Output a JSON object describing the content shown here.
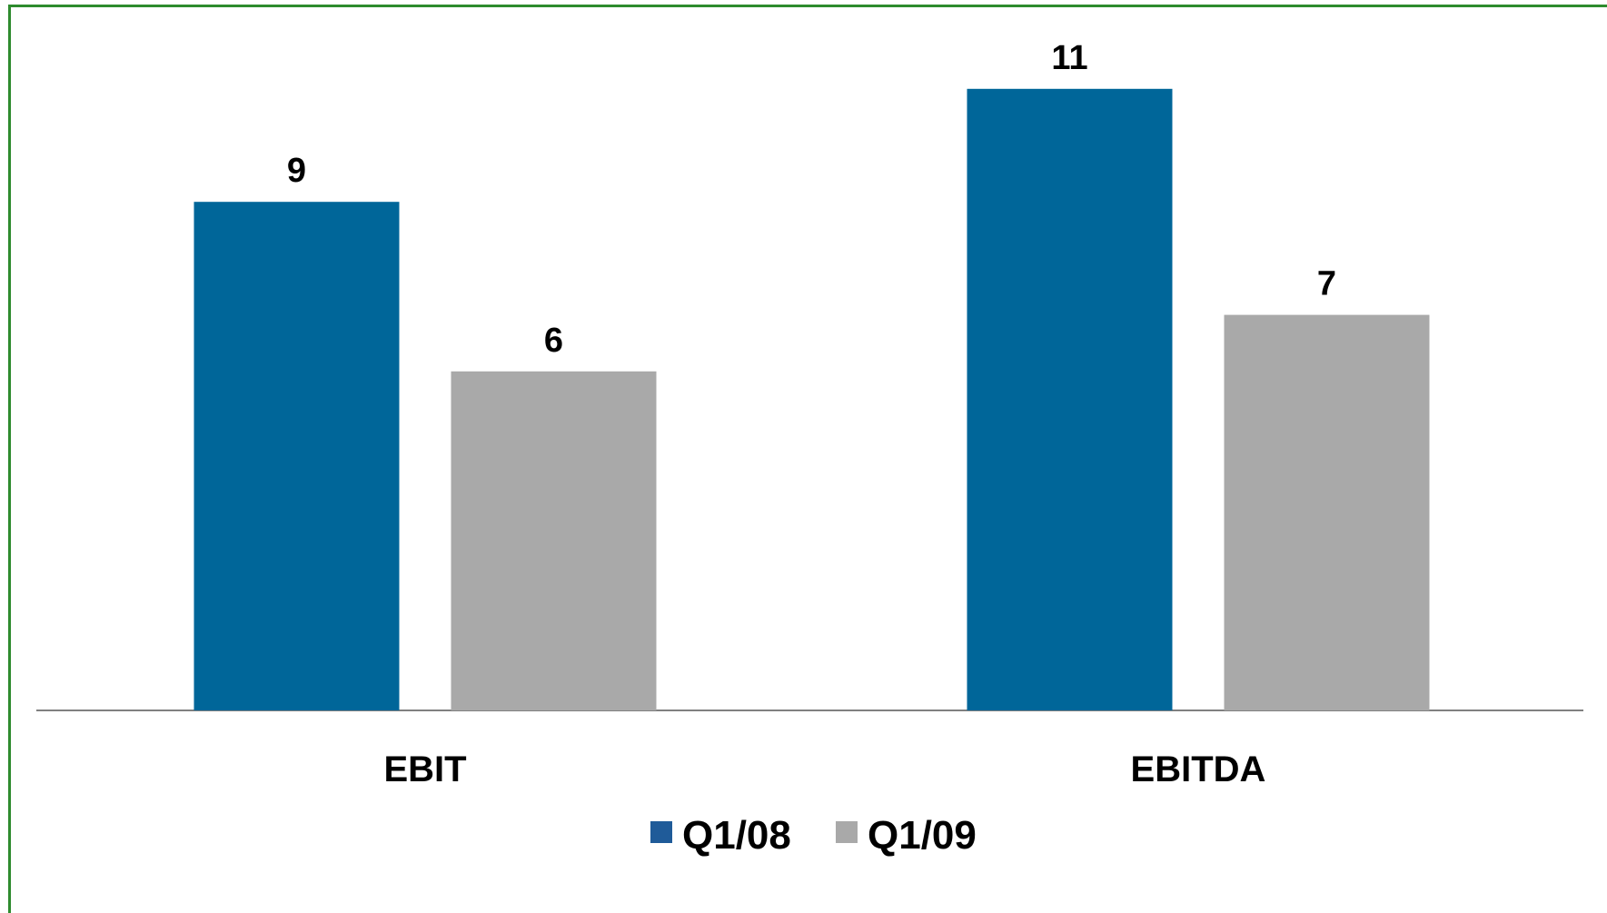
{
  "chart_data": {
    "type": "bar",
    "categories": [
      "EBIT",
      "EBITDA"
    ],
    "series": [
      {
        "name": "Q1/08",
        "color": "#006699",
        "values": [
          9,
          11
        ]
      },
      {
        "name": "Q1/09",
        "color": "#a9a9a9",
        "values": [
          6,
          7
        ]
      }
    ],
    "data_labels": true,
    "ylim": [
      0,
      12.5
    ],
    "grid": false,
    "legend": "bottom-center",
    "title": "",
    "xlabel": "",
    "ylabel": ""
  }
}
